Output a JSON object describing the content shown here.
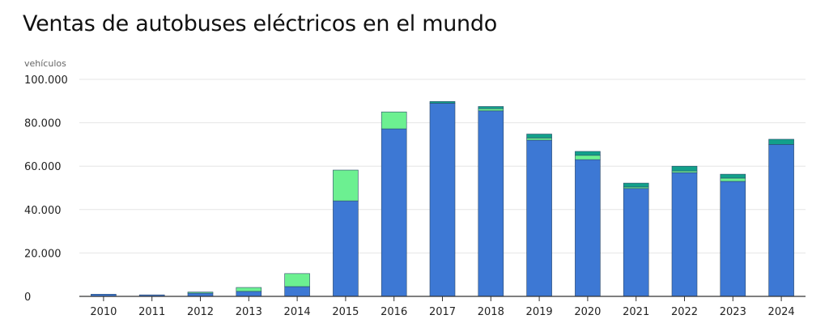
{
  "chart_data": {
    "type": "bar",
    "stacked": true,
    "title": "Ventas de autobuses eléctricos en el mundo",
    "ylabel": "vehículos",
    "xlabel": "",
    "ylim": [
      0,
      100000
    ],
    "yticks": [
      "0",
      "20.000",
      "40.000",
      "60.000",
      "80.000",
      "100.000"
    ],
    "ytick_values": [
      0,
      20000,
      40000,
      60000,
      80000,
      100000
    ],
    "grid": true,
    "categories": [
      "2010",
      "2011",
      "2012",
      "2013",
      "2014",
      "2015",
      "2016",
      "2017",
      "2018",
      "2019",
      "2020",
      "2021",
      "2022",
      "2023",
      "2024"
    ],
    "series": [
      {
        "color": "#3d78d4",
        "values": [
          1000,
          700,
          1500,
          2300,
          4500,
          44000,
          77200,
          89000,
          85500,
          72000,
          63000,
          49700,
          57000,
          53000,
          70000
        ]
      },
      {
        "color": "#6cf091",
        "values": [
          0,
          0,
          500,
          1800,
          6000,
          14200,
          7800,
          0,
          1000,
          1000,
          2000,
          700,
          800,
          1500,
          0
        ]
      },
      {
        "color": "#12a08a",
        "values": [
          0,
          0,
          0,
          0,
          0,
          0,
          0,
          800,
          1000,
          1800,
          1800,
          1800,
          2200,
          1800,
          2400
        ]
      }
    ]
  }
}
